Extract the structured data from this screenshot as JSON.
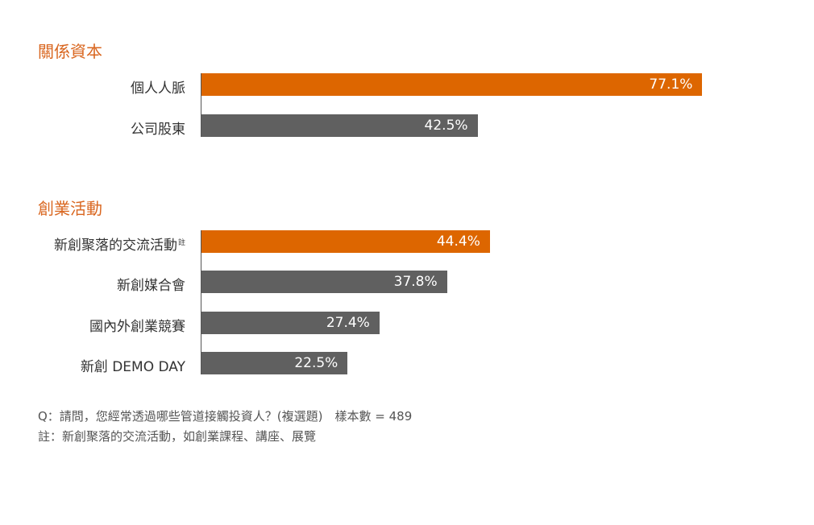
{
  "colors": {
    "accent": "#dd6600",
    "neutral": "#606060",
    "title": "#d9661f"
  },
  "chart_data": {
    "type": "bar",
    "orientation": "horizontal",
    "unit": "%",
    "xlim": [
      0,
      100
    ],
    "groups": [
      {
        "title": "關係資本",
        "categories": [
          "個人人脈",
          "公司股東"
        ],
        "values": [
          77.1,
          42.5
        ],
        "value_labels": [
          "77.1%",
          "42.5%"
        ],
        "highlight": [
          true,
          false
        ]
      },
      {
        "title": "創業活動",
        "categories": [
          "新創聚落的交流活動",
          "新創媒合會",
          "國內外創業競賽",
          "新創 DEMO DAY"
        ],
        "values": [
          44.4,
          37.8,
          27.4,
          22.5
        ],
        "value_labels": [
          "44.4%",
          "37.8%",
          "27.4%",
          "22.5%"
        ],
        "highlight": [
          true,
          false,
          false,
          false
        ],
        "footnote_mark": "註"
      }
    ]
  },
  "notes": {
    "question": "Q：請問，您經常透過哪些管道接觸投資人？(複選題)　樣本數 = 489",
    "footnote": "註：新創聚落的交流活動，如創業課程、講座、展覽"
  }
}
